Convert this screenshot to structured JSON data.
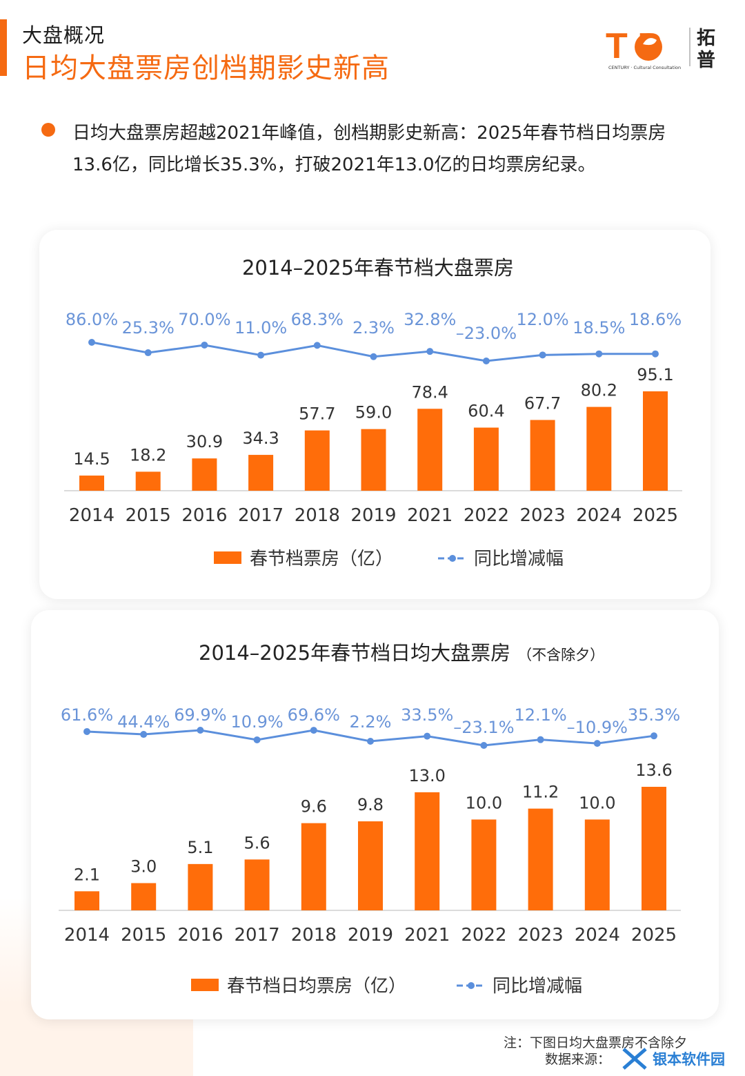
{
  "header": {
    "section_label": "大盘概况",
    "headline": "日均大盘票房创档期影史新高"
  },
  "logo": {
    "wordmark": "T P",
    "tagline": "CENTURY · Cultural Consultation",
    "cn": [
      "拓",
      "普"
    ],
    "brand_color": "#f56a12"
  },
  "summary": {
    "line1": "日均大盘票房超越2021年峰值，创档期影史新高：2025年春节档日均票房",
    "line2": "13.6亿，同比增长35.3%，打破2021年13.0亿的日均票房纪录。"
  },
  "colors": {
    "bar": "#ff6d0a",
    "line": "#5b8fdc",
    "accent": "#f56a12"
  },
  "chart_data": [
    {
      "type": "bar",
      "title": "2014–2025年春节档大盘票房",
      "categories": [
        "2014",
        "2015",
        "2016",
        "2017",
        "2018",
        "2019",
        "2021",
        "2022",
        "2023",
        "2024",
        "2025"
      ],
      "series": [
        {
          "name": "春节档票房（亿）",
          "type": "bar",
          "values": [
            14.5,
            18.2,
            30.9,
            34.3,
            57.7,
            59.0,
            78.4,
            60.4,
            67.7,
            80.2,
            95.1
          ],
          "labels": [
            "14.5",
            "18.2",
            "30.9",
            "34.3",
            "57.7",
            "59.0",
            "78.4",
            "60.4",
            "67.7",
            "80.2",
            "95.1"
          ]
        },
        {
          "name": "同比增减幅",
          "type": "line",
          "values": [
            86.0,
            25.3,
            70.0,
            11.0,
            68.3,
            2.3,
            32.8,
            -23.0,
            12.0,
            18.5,
            18.6
          ],
          "labels": [
            "86.0%",
            "25.3%",
            "70.0%",
            "11.0%",
            "68.3%",
            "2.3%",
            "32.8%",
            "–23.0%",
            "12.0%",
            "18.5%",
            "18.6%"
          ]
        }
      ],
      "legend_position": "bottom"
    },
    {
      "type": "bar",
      "title": "2014–2025年春节档日均大盘票房",
      "note": "（不含除夕）",
      "categories": [
        "2014",
        "2015",
        "2016",
        "2017",
        "2018",
        "2019",
        "2021",
        "2022",
        "2023",
        "2024",
        "2025"
      ],
      "series": [
        {
          "name": "春节档日均票房（亿）",
          "type": "bar",
          "values": [
            2.1,
            3.0,
            5.1,
            5.6,
            9.6,
            9.8,
            13.0,
            10.0,
            11.2,
            10.0,
            13.6
          ],
          "labels": [
            "2.1",
            "3.0",
            "5.1",
            "5.6",
            "9.6",
            "9.8",
            "13.0",
            "10.0",
            "11.2",
            "10.0",
            "13.6"
          ]
        },
        {
          "name": "同比增减幅",
          "type": "line",
          "values": [
            61.6,
            44.4,
            69.9,
            10.9,
            69.6,
            2.2,
            33.5,
            -23.1,
            12.1,
            -10.9,
            35.3
          ],
          "labels": [
            "61.6%",
            "44.4%",
            "69.9%",
            "10.9%",
            "69.6%",
            "2.2%",
            "33.5%",
            "–23.1%",
            "12.1%",
            "–10.9%",
            "35.3%"
          ]
        }
      ],
      "legend_position": "bottom"
    }
  ],
  "footer": {
    "note": "注：下图日均大盘票房不含除夕",
    "source": "数据来源："
  },
  "watermark": {
    "text": "银本软件园"
  }
}
